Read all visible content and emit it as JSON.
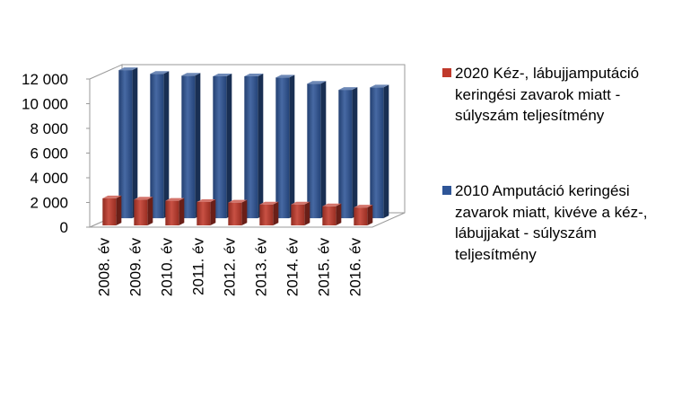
{
  "chart_data": {
    "type": "bar",
    "variant": "3d-clustered-column-depth",
    "categories": [
      "2008. év",
      "2009. év",
      "2010. év",
      "2011. év",
      "2012. év",
      "2013. év",
      "2014. év",
      "2015. év",
      "2016. év"
    ],
    "series": [
      {
        "name": "2020 Kéz-, lábujjamputáció keringési zavarok miatt - súlyszám teljesítmény",
        "color": "#c0392b",
        "values": [
          2200,
          2100,
          2000,
          1900,
          1850,
          1700,
          1700,
          1550,
          1450
        ]
      },
      {
        "name": "2010 Amputáció keringési zavarok miatt, kivéve a kéz-, lábujjakat - súlyszám teljesítmény",
        "color": "#2e5597",
        "values": [
          12000,
          11700,
          11550,
          11500,
          11500,
          11400,
          10900,
          10400,
          10600
        ]
      }
    ],
    "yticks": [
      "0",
      "2 000",
      "4 000",
      "6 000",
      "8 000",
      "10 000",
      "12 000"
    ],
    "ylim": [
      0,
      12000
    ],
    "grid": false,
    "legend_position": "right"
  }
}
